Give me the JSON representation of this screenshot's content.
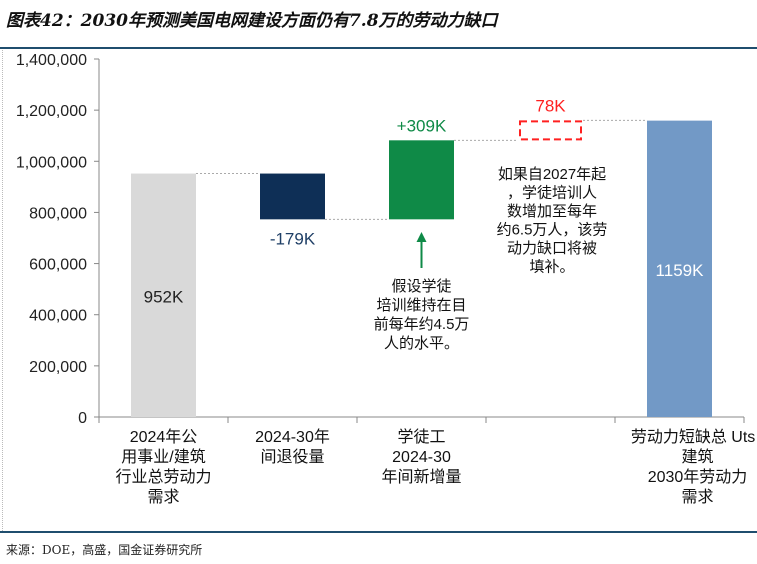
{
  "title": "图表42：2030年预测美国电网建设方面仍有7.8万的劳动力缺口",
  "source": "来源：DOE，高盛，国金证券研究所",
  "chart_data": {
    "type": "bar",
    "subtype": "waterfall",
    "ylim": [
      0,
      1400000
    ],
    "yticks": [
      0,
      200000,
      400000,
      600000,
      800000,
      1000000,
      1200000,
      1400000
    ],
    "ytick_labels": [
      "0",
      "200,000",
      "400,000",
      "600,000",
      "800,000",
      "1,000,000",
      "1,200,000",
      "1,400,000"
    ],
    "categories": [
      [
        "2024年公",
        "用事业/建筑",
        "行业总劳动力",
        "需求"
      ],
      [
        "2024-30年",
        "间退役量"
      ],
      [
        "学徒工",
        "2024-30",
        "年间新增量"
      ],
      [
        ""
      ],
      [
        "劳动力短缺总 Uts  /",
        "建筑",
        "2030年劳动力",
        "需求"
      ]
    ],
    "bars": [
      {
        "base": 0,
        "top": 952000,
        "label": "952K",
        "color": "#d9d9d9",
        "label_color": "#222222",
        "label_pos": "inside"
      },
      {
        "base": 773000,
        "top": 952000,
        "label": "-179K",
        "color": "#0e2f56",
        "label_color": "#1f3f66",
        "label_pos": "below"
      },
      {
        "base": 773000,
        "top": 1082000,
        "label": "+309K",
        "color": "#0f8a47",
        "label_color": "#0f8a47",
        "label_pos": "above"
      },
      {
        "base": 1082000,
        "top": 1160000,
        "label": "78K",
        "color": "#ff2020",
        "label_color": "#ff2020",
        "label_pos": "above",
        "dashed": true
      },
      {
        "base": 0,
        "top": 1159000,
        "label": "1159K",
        "color": "#7299c6",
        "label_color": "#ffffff",
        "label_pos": "inside"
      }
    ],
    "annotations": {
      "apprentice_note": [
        "假设学徒",
        "培训维持在目",
        "前每年约4.5万",
        "人的水平。"
      ],
      "gap_note": [
        "如果自2027年起",
        "，学徒培训人",
        "数增加至每年",
        "约6.5万人，该劳",
        "动力缺口将被",
        "填补。"
      ]
    }
  }
}
